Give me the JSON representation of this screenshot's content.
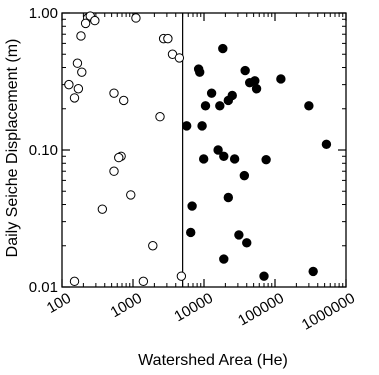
{
  "chart_data": {
    "type": "scatter",
    "xlabel": "Watershed Area (He)",
    "ylabel": "Daily Seiche Displacement (m)",
    "x_scale": "log",
    "y_scale": "log",
    "xlim": [
      100,
      1000000
    ],
    "ylim": [
      0.01,
      1.0
    ],
    "x_ticks": [
      100,
      1000,
      10000,
      100000,
      1000000
    ],
    "x_tick_labels": [
      "100",
      "1000",
      "10000",
      "100000",
      "1000000"
    ],
    "y_ticks": [
      0.01,
      0.1,
      1.0
    ],
    "y_tick_labels": [
      "0.01",
      "0.10",
      "1.00"
    ],
    "grid": false,
    "divider_x": 5000,
    "series": [
      {
        "marker": "open-circle",
        "color": "#000000",
        "points": [
          [
            230,
            0.92
          ],
          [
            250,
            0.95
          ],
          [
            290,
            0.88
          ],
          [
            215,
            0.84
          ],
          [
            185,
            0.68
          ],
          [
            1100,
            0.92
          ],
          [
            2700,
            0.65
          ],
          [
            3100,
            0.65
          ],
          [
            3600,
            0.5
          ],
          [
            4500,
            0.47
          ],
          [
            165,
            0.43
          ],
          [
            190,
            0.37
          ],
          [
            125,
            0.3
          ],
          [
            170,
            0.28
          ],
          [
            150,
            0.24
          ],
          [
            540,
            0.26
          ],
          [
            740,
            0.23
          ],
          [
            2400,
            0.175
          ],
          [
            680,
            0.09
          ],
          [
            630,
            0.088
          ],
          [
            540,
            0.07
          ],
          [
            930,
            0.047
          ],
          [
            370,
            0.037
          ],
          [
            1900,
            0.02
          ],
          [
            1400,
            0.011
          ],
          [
            150,
            0.011
          ],
          [
            4800,
            0.012
          ]
        ]
      },
      {
        "marker": "filled-circle",
        "color": "#000000",
        "points": [
          [
            8400,
            0.39
          ],
          [
            8700,
            0.37
          ],
          [
            18400,
            0.55
          ],
          [
            12800,
            0.26
          ],
          [
            10500,
            0.21
          ],
          [
            16700,
            0.21
          ],
          [
            25000,
            0.25
          ],
          [
            38000,
            0.38
          ],
          [
            44000,
            0.31
          ],
          [
            52000,
            0.32
          ],
          [
            55000,
            0.28
          ],
          [
            121000,
            0.33
          ],
          [
            300000,
            0.21
          ],
          [
            5700,
            0.15
          ],
          [
            9400,
            0.15
          ],
          [
            22000,
            0.23
          ],
          [
            15800,
            0.1
          ],
          [
            19000,
            0.09
          ],
          [
            9900,
            0.086
          ],
          [
            27000,
            0.086
          ],
          [
            75000,
            0.085
          ],
          [
            37000,
            0.065
          ],
          [
            530000,
            0.11
          ],
          [
            6800,
            0.039
          ],
          [
            22000,
            0.045
          ],
          [
            6500,
            0.025
          ],
          [
            31000,
            0.024
          ],
          [
            40000,
            0.021
          ],
          [
            19000,
            0.016
          ],
          [
            70000,
            0.012
          ],
          [
            345000,
            0.013
          ]
        ]
      }
    ]
  }
}
